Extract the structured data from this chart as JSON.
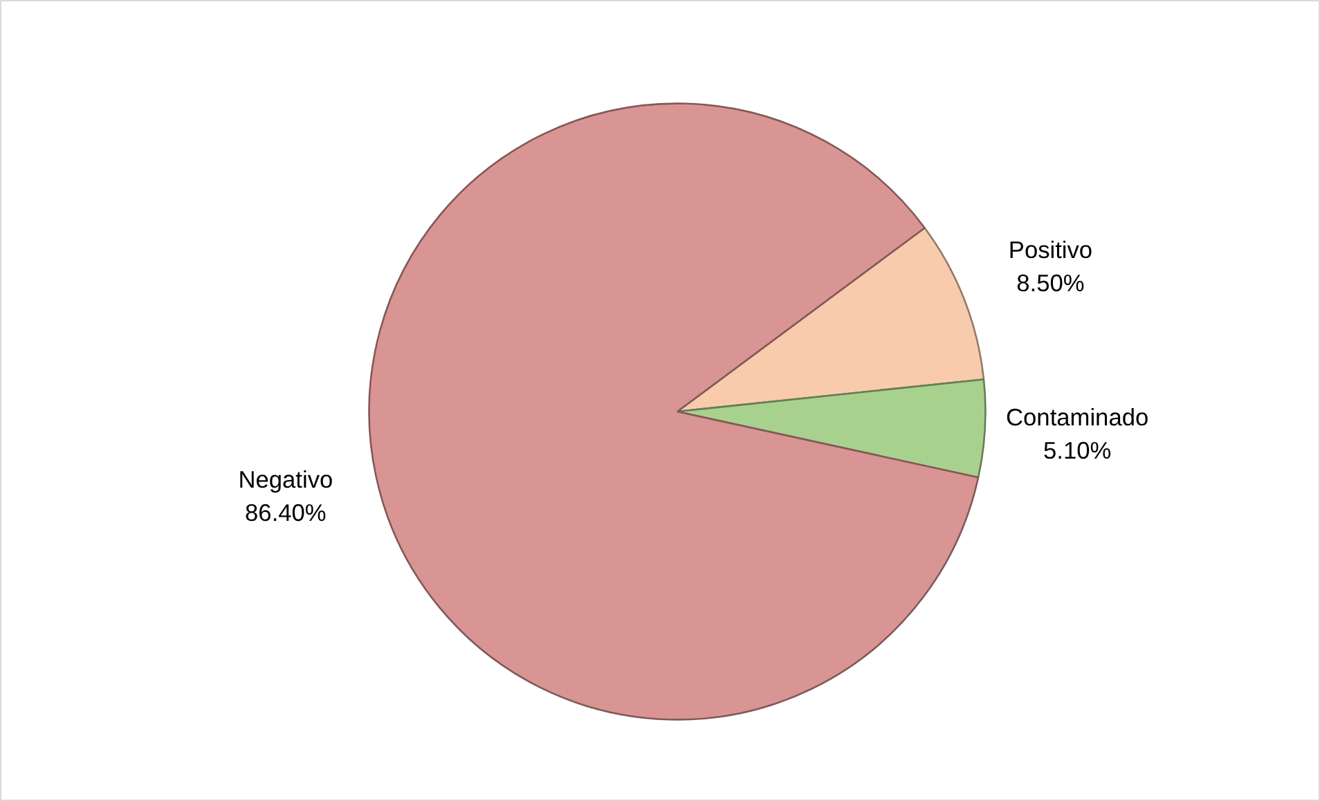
{
  "chart_data": {
    "type": "pie",
    "categories": [
      "Positivo",
      "Contaminado",
      "Negativo"
    ],
    "values": [
      8.5,
      5.1,
      86.4
    ],
    "colors": [
      "#f8cbad",
      "#a9d18e",
      "#d99594"
    ],
    "value_labels": [
      "8.50%",
      "5.10%",
      "86.40%"
    ]
  }
}
